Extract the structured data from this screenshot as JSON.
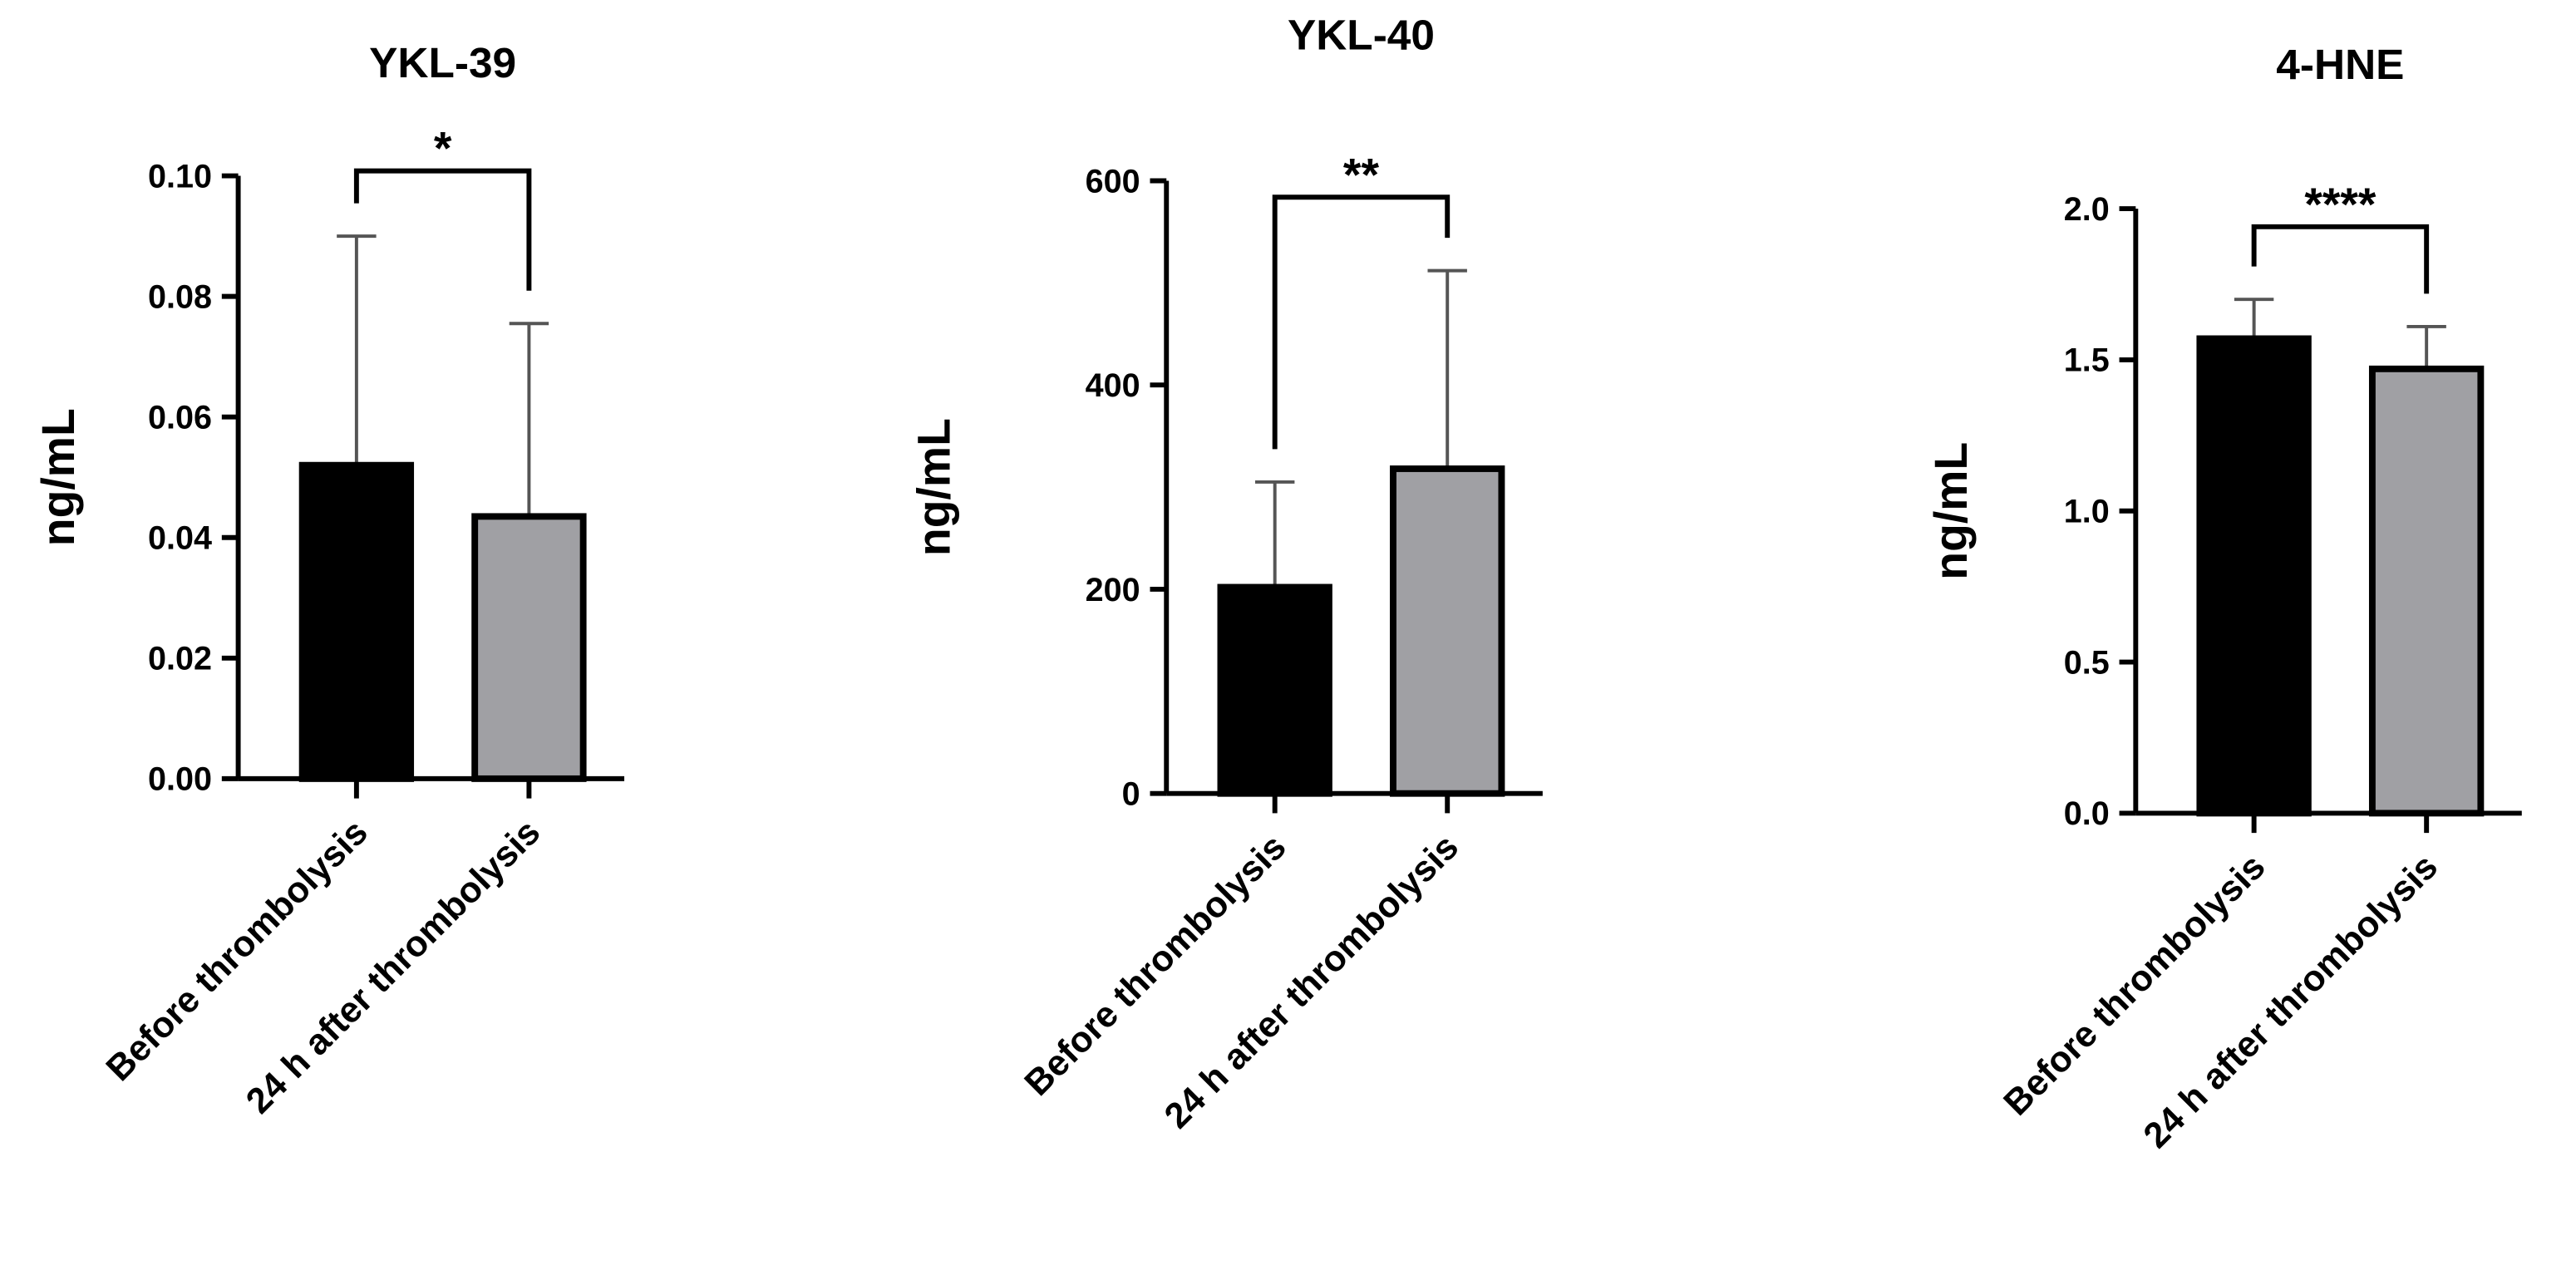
{
  "chart_data": [
    {
      "type": "bar",
      "title": "YKL-39",
      "y_label": "ng/mL",
      "annotation": "*",
      "categories": [
        "Before thrombolysis",
        "24 h after thrombolysis"
      ],
      "values": [
        0.052,
        0.0435
      ],
      "errors": [
        0.038,
        0.032
      ],
      "colors": [
        "#000000",
        "#a0a0a4"
      ],
      "ylim": [
        0,
        0.1
      ],
      "yticks": [
        {
          "value": 0,
          "label": "0.00"
        },
        0.02,
        0.04,
        0.06,
        0.08,
        {
          "value": 0.1,
          "label": "0.10"
        }
      ]
    },
    {
      "type": "bar",
      "title": "YKL-40",
      "y_label": "ng/mL",
      "annotation": "**",
      "categories": [
        "Before thrombolysis",
        "24 h after thrombolysis"
      ],
      "values": [
        202,
        318
      ],
      "errors": [
        103,
        194
      ],
      "colors": [
        "#000000",
        "#a0a0a4"
      ],
      "ylim": [
        0,
        600
      ],
      "yticks": [
        0,
        200,
        400,
        600
      ]
    },
    {
      "type": "bar",
      "title": "4-HNE",
      "y_label": "ng/mL",
      "annotation": "****",
      "categories": [
        "Before thrombolysis",
        "24 h after thrombolysis"
      ],
      "values": [
        1.57,
        1.47
      ],
      "errors": [
        0.13,
        0.14
      ],
      "colors": [
        "#000000",
        "#a0a0a4"
      ],
      "ylim": [
        0,
        2
      ],
      "yticks": [
        {
          "value": 0,
          "label": "0.0"
        },
        0.5,
        {
          "value": 1,
          "label": "1.0"
        },
        1.5,
        {
          "value": 2,
          "label": "2.0"
        }
      ]
    }
  ]
}
